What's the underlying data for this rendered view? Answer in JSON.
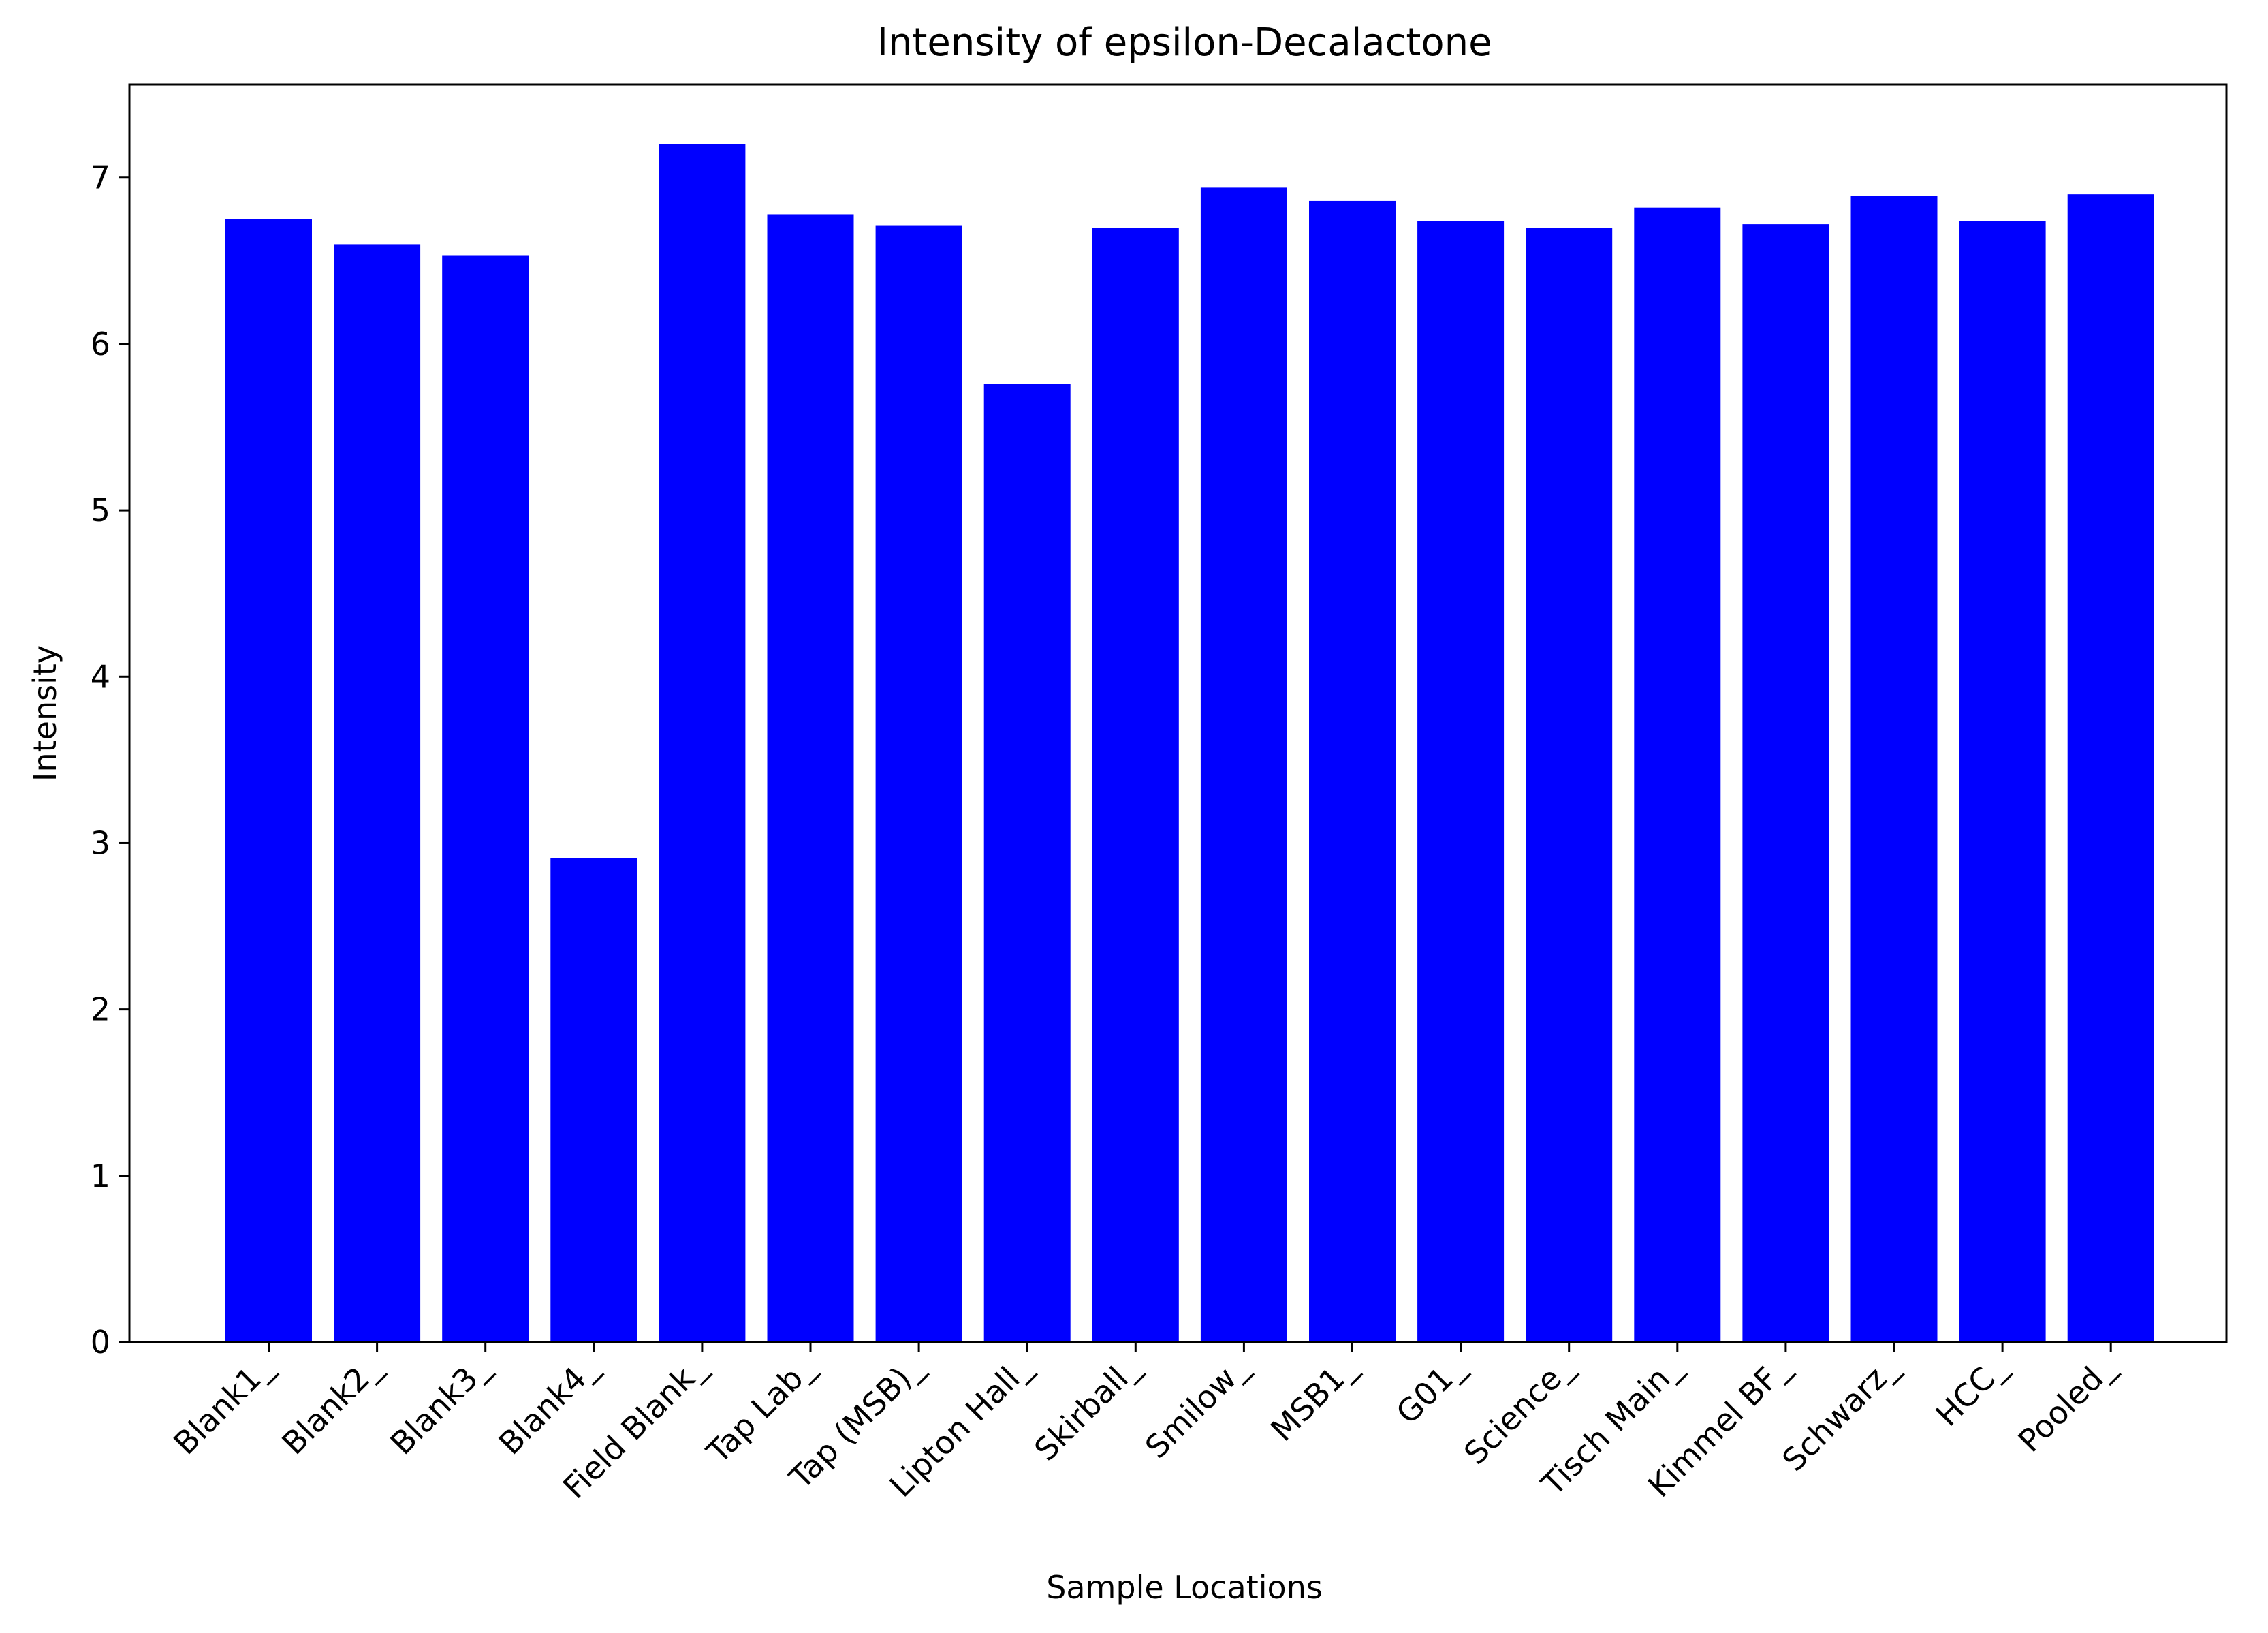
{
  "chart_data": {
    "type": "bar",
    "title": "Intensity of epsilon-Decalactone",
    "xlabel": "Sample Locations",
    "ylabel": "Intensity",
    "categories": [
      "Blank1_",
      "Blank2_",
      "Blank3_",
      "Blank4_",
      "Field Blank_",
      "Tap Lab_",
      "Tap (MSB)_",
      "Lipton Hall_",
      "Skirball_",
      "Smilow_",
      "MSB1_",
      "G01_",
      "Science_",
      "Tisch Main_",
      "Kimmel BF_",
      "Schwarz_",
      "HCC_",
      "Pooled_"
    ],
    "values": [
      6.75,
      6.6,
      6.53,
      2.91,
      7.2,
      6.78,
      6.71,
      5.76,
      6.7,
      6.94,
      6.86,
      6.74,
      6.7,
      6.82,
      6.72,
      6.89,
      6.74,
      6.9
    ],
    "ylim": [
      0,
      7.56
    ],
    "yticks": [
      0,
      1,
      2,
      3,
      4,
      5,
      6,
      7
    ],
    "bar_color": "#0000ff",
    "grid": false,
    "legend": "none"
  }
}
